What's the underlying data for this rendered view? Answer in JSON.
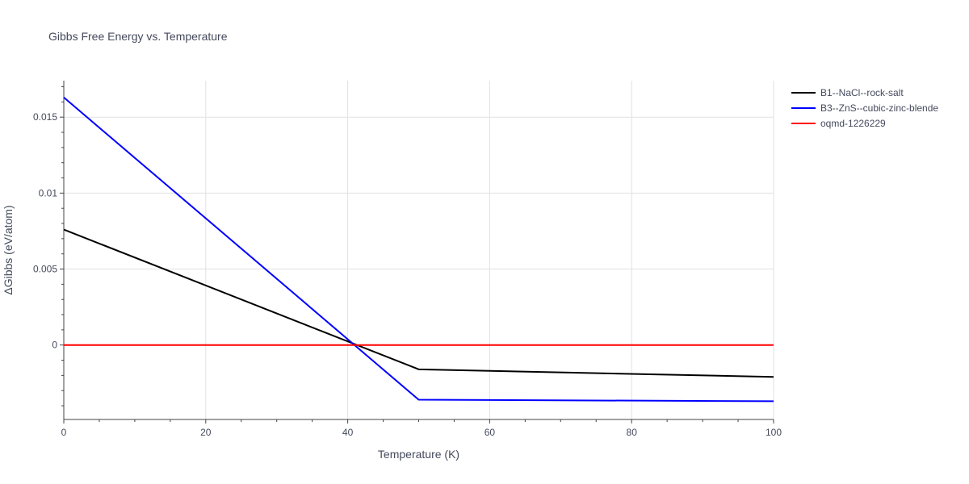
{
  "chart_data": {
    "type": "line",
    "title": "Gibbs Free Energy vs. Temperature",
    "xlabel": "Temperature (K)",
    "ylabel": "ΔGibbs (eV/atom)",
    "xlim": [
      0,
      100
    ],
    "ylim": [
      -0.0049,
      0.0174
    ],
    "x_ticks": [
      0,
      20,
      40,
      60,
      80,
      100
    ],
    "x_tick_labels": [
      "0",
      "20",
      "40",
      "60",
      "80",
      "100"
    ],
    "y_ticks": [
      0,
      0.005,
      0.01,
      0.015
    ],
    "y_tick_labels": [
      "0",
      "0.005",
      "0.01",
      "0.015"
    ],
    "grid": true,
    "legend_position": "top-right outside",
    "series": [
      {
        "name": "B1--NaCl--rock-salt",
        "color": "#000000",
        "x": [
          0,
          50,
          100
        ],
        "y": [
          0.0076,
          -0.0016,
          -0.0021
        ]
      },
      {
        "name": "B3--ZnS--cubic-zinc-blende",
        "color": "#0000ff",
        "x": [
          0,
          50,
          100
        ],
        "y": [
          0.0163,
          -0.0036,
          -0.0037
        ]
      },
      {
        "name": "oqmd-1226229",
        "color": "#ff0000",
        "x": [
          0,
          100
        ],
        "y": [
          0,
          0
        ]
      }
    ]
  }
}
